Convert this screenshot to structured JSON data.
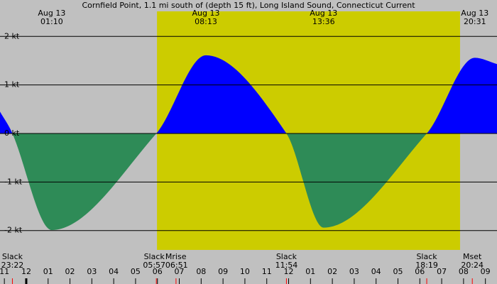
{
  "chart_data": {
    "type": "tide-current",
    "title": "Cornfield Point, 1.1 mi south of (depth 15 ft), Long Island Sound, Connecticut Current",
    "x": [
      -1.2,
      -0.633,
      1.167,
      5.95,
      8.217,
      11.9,
      13.6,
      18.317,
      20.517,
      21.53
    ],
    "values": [
      0.45,
      0,
      -1.99,
      0,
      1.61,
      0,
      -1.94,
      0,
      1.56,
      1.43
    ],
    "flood_color": "#0000ff",
    "ebb_color": "#2e8b57",
    "background": "#c0c0c0",
    "daylight_color": "#cccc00",
    "daylight": [
      5.98,
      19.84
    ],
    "xlim": [
      -1.2,
      21.53
    ],
    "ylim": [
      -2.75,
      2.75
    ],
    "yticks": [
      {
        "value": 2,
        "label": "2 kt"
      },
      {
        "value": 1,
        "label": "1 kt"
      },
      {
        "value": 0,
        "label": "0 kt"
      },
      {
        "value": -1,
        "label": "-1 kt"
      },
      {
        "value": -2,
        "label": "-2 kt"
      }
    ],
    "xticks": [
      {
        "value": -1,
        "label": "11"
      },
      {
        "value": 0,
        "label": "12"
      },
      {
        "value": 1,
        "label": "01"
      },
      {
        "value": 2,
        "label": "02"
      },
      {
        "value": 3,
        "label": "03"
      },
      {
        "value": 4,
        "label": "04"
      },
      {
        "value": 5,
        "label": "05"
      },
      {
        "value": 6,
        "label": "06"
      },
      {
        "value": 7,
        "label": "07"
      },
      {
        "value": 8,
        "label": "08"
      },
      {
        "value": 9,
        "label": "09"
      },
      {
        "value": 10,
        "label": "10"
      },
      {
        "value": 11,
        "label": "11"
      },
      {
        "value": 12,
        "label": "12"
      },
      {
        "value": 13,
        "label": "01"
      },
      {
        "value": 14,
        "label": "02"
      },
      {
        "value": 15,
        "label": "03"
      },
      {
        "value": 16,
        "label": "04"
      },
      {
        "value": 17,
        "label": "05"
      },
      {
        "value": 18,
        "label": "06"
      },
      {
        "value": 19,
        "label": "07"
      },
      {
        "value": 20,
        "label": "08"
      },
      {
        "value": 21,
        "label": "09"
      }
    ],
    "top_labels": [
      {
        "date": "Aug 13",
        "time": "01:10",
        "at": 1.167
      },
      {
        "date": "Aug 13",
        "time": "08:13",
        "at": 8.217
      },
      {
        "date": "Aug 13",
        "time": "13:36",
        "at": 13.6
      },
      {
        "date": "Aug 13",
        "time": "20:31",
        "at": 20.517
      }
    ],
    "bottom_labels": [
      {
        "text": "Slack",
        "time": "23:22",
        "at": -0.633
      },
      {
        "text": "Slack",
        "time": "05:57",
        "at": 5.95
      },
      {
        "text": "Mrise",
        "time": "06:51",
        "at": 6.85
      },
      {
        "text": "Slack",
        "time": "11:54",
        "at": 11.9
      },
      {
        "text": "Slack",
        "time": "18:19",
        "at": 18.317
      },
      {
        "text": "Mset",
        "time": "20:24",
        "at": 20.4
      }
    ]
  }
}
